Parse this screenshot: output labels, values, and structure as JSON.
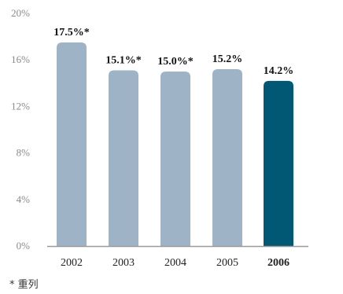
{
  "chart_data": {
    "type": "bar",
    "categories": [
      "2002",
      "2003",
      "2004",
      "2005",
      "2006"
    ],
    "values": [
      17.5,
      15.1,
      15.0,
      15.2,
      14.2
    ],
    "data_labels": [
      "17.5%*",
      "15.1%*",
      "15.0%*",
      "15.2%",
      "14.2%"
    ],
    "highlight_index": 4,
    "title": "",
    "xlabel": "",
    "ylabel": "",
    "ylim": [
      0,
      20
    ],
    "yticks": [
      0,
      4,
      8,
      12,
      16,
      20
    ],
    "ytick_labels": [
      "0%",
      "4%",
      "8%",
      "12%",
      "16%",
      "20%"
    ],
    "grid": false,
    "legend": "none",
    "colors": {
      "bar": "#9fb3c6",
      "highlight": "#005874",
      "axis": "#9a9a9a"
    }
  },
  "footnote": "* 重列"
}
